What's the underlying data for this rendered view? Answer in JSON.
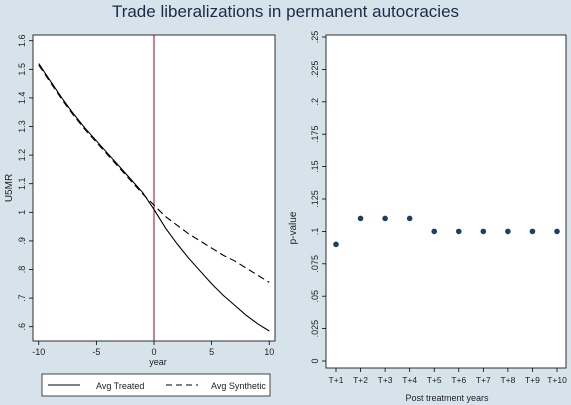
{
  "figure": {
    "title": "Trade liberalizations in permanent autocracies"
  },
  "chart_data": [
    {
      "type": "line",
      "xlabel": "year",
      "ylabel": "U5MR",
      "xlim": [
        -10.5,
        10.5
      ],
      "ylim": [
        0.55,
        1.62
      ],
      "xticks": [
        -10,
        -5,
        0,
        5,
        10
      ],
      "xtick_labels": [
        "-10",
        "-5",
        "0",
        "5",
        "10"
      ],
      "yticks": [
        0.6,
        0.7,
        0.8,
        0.9,
        1.0,
        1.1,
        1.2,
        1.3,
        1.4,
        1.5,
        1.6
      ],
      "ytick_labels": [
        ".6",
        ".7",
        ".8",
        ".9",
        "1",
        "1.1",
        "1.2",
        "1.3",
        "1.4",
        "1.5",
        "1.6"
      ],
      "vline_x": 0,
      "legend_position": "bottom",
      "series": [
        {
          "name": "Avg Treated",
          "style": "solid",
          "color": "#000000",
          "x": [
            -10,
            -9,
            -8,
            -7,
            -6,
            -5,
            -4,
            -3,
            -2,
            -1,
            0,
            1,
            2,
            3,
            4,
            5,
            6,
            7,
            8,
            9,
            10
          ],
          "y": [
            1.52,
            1.46,
            1.4,
            1.345,
            1.295,
            1.25,
            1.205,
            1.16,
            1.115,
            1.07,
            1.01,
            0.945,
            0.89,
            0.84,
            0.795,
            0.75,
            0.71,
            0.675,
            0.64,
            0.61,
            0.585
          ]
        },
        {
          "name": "Avg Synthetic",
          "style": "dashed",
          "color": "#000000",
          "x": [
            -10,
            -9,
            -8,
            -7,
            -6,
            -5,
            -4,
            -3,
            -2,
            -1,
            0,
            1,
            2,
            3,
            4,
            5,
            6,
            7,
            8,
            9,
            10
          ],
          "y": [
            1.515,
            1.455,
            1.395,
            1.34,
            1.29,
            1.245,
            1.2,
            1.155,
            1.11,
            1.065,
            1.025,
            0.985,
            0.955,
            0.925,
            0.9,
            0.875,
            0.85,
            0.83,
            0.805,
            0.78,
            0.755
          ]
        }
      ]
    },
    {
      "type": "scatter",
      "xlabel": "Post treatment years",
      "ylabel": "p-value",
      "ylim": [
        0,
        0.25
      ],
      "yticks": [
        0,
        0.025,
        0.05,
        0.075,
        0.1,
        0.125,
        0.15,
        0.175,
        0.2,
        0.225,
        0.25
      ],
      "ytick_labels": [
        "0",
        ".025",
        ".05",
        ".075",
        ".1",
        ".125",
        ".15",
        ".175",
        ".2",
        ".225",
        ".25"
      ],
      "categories": [
        "T+1",
        "T+2",
        "T+3",
        "T+4",
        "T+5",
        "T+6",
        "T+7",
        "T+8",
        "T+9",
        "T+10"
      ],
      "values": [
        0.09,
        0.11,
        0.11,
        0.11,
        0.1,
        0.1,
        0.1,
        0.1,
        0.1,
        0.1
      ],
      "marker_color": "#1a3f6b"
    }
  ]
}
